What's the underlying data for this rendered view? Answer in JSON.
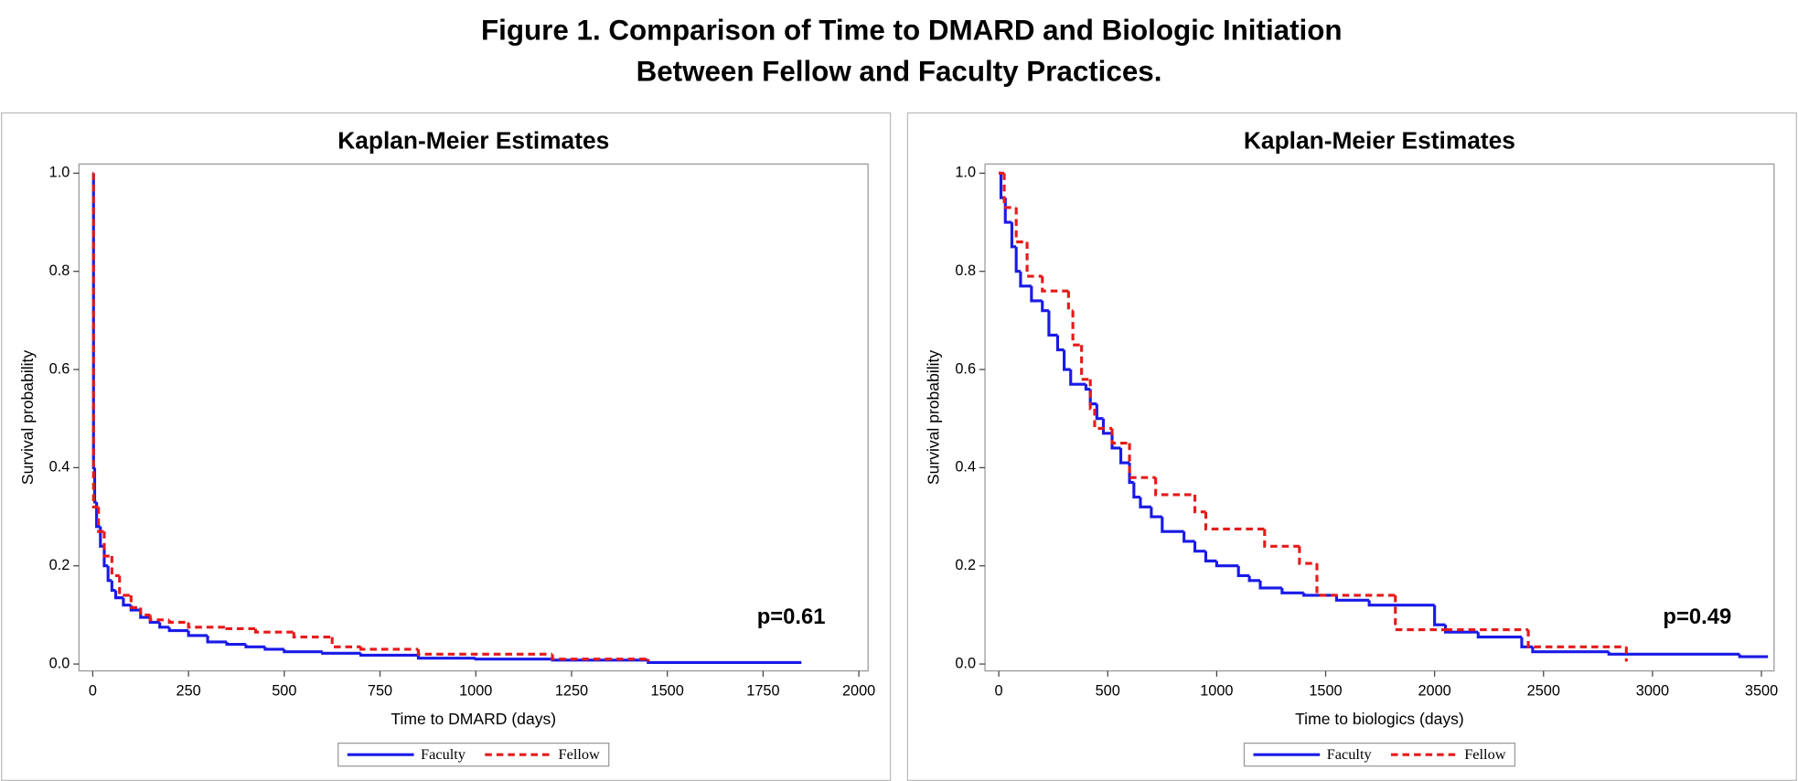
{
  "title": [
    "Figure 1. Comparison of Time to DMARD and Biologic Initiation",
    "Between Fellow and Faculty Practices."
  ],
  "chart_data": [
    {
      "type": "step",
      "title": "Kaplan-Meier Estimates",
      "x_label": "Time to DMARD (days)",
      "y_label": "Survival probability",
      "annotation": "p=0.61",
      "xlim": [
        0,
        2000
      ],
      "xticks": [
        0,
        250,
        500,
        750,
        1000,
        1250,
        1500,
        1750,
        2000
      ],
      "ylim": [
        0,
        1
      ],
      "yticks": [
        {
          "value": 0,
          "label": "0.0"
        },
        {
          "value": 0.2,
          "label": "0.2"
        },
        {
          "value": 0.4,
          "label": "0.4"
        },
        {
          "value": 0.6,
          "label": "0.6"
        },
        {
          "value": 0.8,
          "label": "0.8"
        },
        {
          "value": 1,
          "label": "1.0"
        }
      ],
      "series": [
        {
          "name": "Faculty",
          "color": "#1a1ae6",
          "dash": false,
          "x": [
            0,
            2,
            5,
            10,
            20,
            30,
            40,
            50,
            60,
            80,
            100,
            125,
            150,
            175,
            200,
            250,
            300,
            350,
            400,
            450,
            500,
            600,
            700,
            850,
            1000,
            1200,
            1450,
            1850
          ],
          "values": [
            1,
            0.4,
            0.33,
            0.28,
            0.24,
            0.2,
            0.17,
            0.15,
            0.135,
            0.12,
            0.11,
            0.095,
            0.085,
            0.075,
            0.068,
            0.058,
            0.045,
            0.04,
            0.035,
            0.03,
            0.025,
            0.022,
            0.018,
            0.012,
            0.01,
            0.008,
            0.003,
            0.003
          ]
        },
        {
          "name": "Fellow",
          "color": "#e61a1a",
          "dash": true,
          "x": [
            0,
            2,
            15,
            30,
            50,
            70,
            100,
            125,
            150,
            200,
            250,
            350,
            425,
            525,
            625,
            700,
            850,
            1200,
            1450
          ],
          "values": [
            1,
            0.32,
            0.27,
            0.22,
            0.18,
            0.14,
            0.115,
            0.1,
            0.09,
            0.085,
            0.075,
            0.072,
            0.065,
            0.055,
            0.035,
            0.03,
            0.02,
            0.01,
            0.005
          ]
        }
      ]
    },
    {
      "type": "step",
      "title": "Kaplan-Meier Estimates",
      "x_label": "Time to biologics (days)",
      "y_label": "Survival probability",
      "annotation": "p=0.49",
      "xlim": [
        0,
        3500
      ],
      "xticks": [
        0,
        500,
        1000,
        1500,
        2000,
        2500,
        3000,
        3500
      ],
      "ylim": [
        0,
        1
      ],
      "yticks": [
        {
          "value": 0,
          "label": "0.0"
        },
        {
          "value": 0.2,
          "label": "0.2"
        },
        {
          "value": 0.4,
          "label": "0.4"
        },
        {
          "value": 0.6,
          "label": "0.6"
        },
        {
          "value": 0.8,
          "label": "0.8"
        },
        {
          "value": 1,
          "label": "1.0"
        }
      ],
      "series": [
        {
          "name": "Faculty",
          "color": "#1a1ae6",
          "dash": false,
          "x": [
            0,
            10,
            30,
            60,
            80,
            100,
            150,
            200,
            230,
            270,
            300,
            330,
            400,
            420,
            450,
            480,
            520,
            560,
            600,
            620,
            650,
            700,
            750,
            850,
            900,
            950,
            1000,
            1100,
            1150,
            1200,
            1300,
            1400,
            1550,
            1700,
            2000,
            2050,
            2200,
            2400,
            2450,
            2800,
            3400,
            3530
          ],
          "values": [
            1,
            0.95,
            0.9,
            0.85,
            0.8,
            0.77,
            0.74,
            0.72,
            0.67,
            0.64,
            0.6,
            0.57,
            0.56,
            0.53,
            0.5,
            0.47,
            0.44,
            0.41,
            0.37,
            0.34,
            0.32,
            0.3,
            0.27,
            0.25,
            0.23,
            0.21,
            0.2,
            0.18,
            0.17,
            0.155,
            0.145,
            0.14,
            0.13,
            0.12,
            0.08,
            0.065,
            0.055,
            0.035,
            0.025,
            0.02,
            0.015,
            0.015
          ]
        },
        {
          "name": "Fellow",
          "color": "#e61a1a",
          "dash": true,
          "x": [
            0,
            25,
            80,
            130,
            200,
            320,
            340,
            380,
            420,
            440,
            520,
            600,
            720,
            900,
            950,
            1220,
            1380,
            1460,
            1820,
            2050,
            2430,
            2880
          ],
          "values": [
            1,
            0.93,
            0.86,
            0.79,
            0.76,
            0.72,
            0.65,
            0.58,
            0.52,
            0.48,
            0.45,
            0.38,
            0.345,
            0.31,
            0.275,
            0.24,
            0.205,
            0.14,
            0.07,
            0.07,
            0.035,
            0.005
          ]
        }
      ]
    }
  ]
}
